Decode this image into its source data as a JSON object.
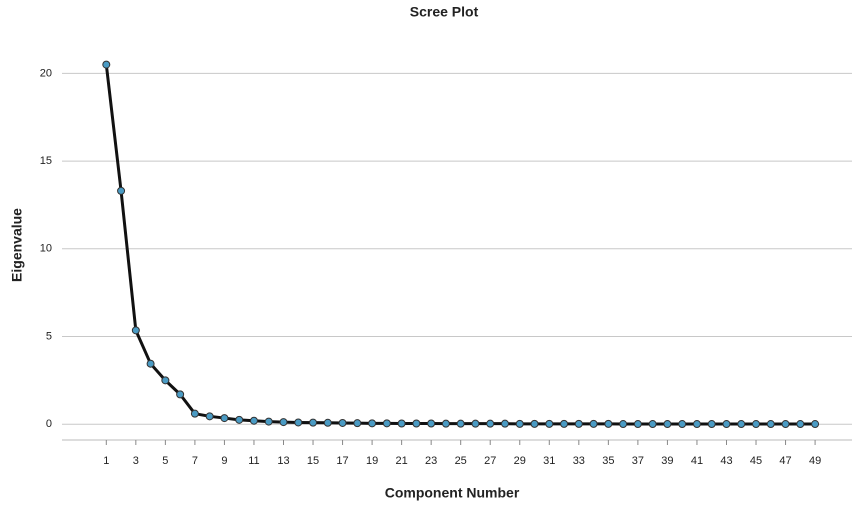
{
  "chart_data": {
    "type": "line",
    "title": "Scree Plot",
    "x_label": "Component Number",
    "y_label": "Eigenvalue",
    "x": [
      1,
      2,
      3,
      4,
      5,
      6,
      7,
      8,
      9,
      10,
      11,
      12,
      13,
      14,
      15,
      16,
      17,
      18,
      19,
      20,
      21,
      22,
      23,
      24,
      25,
      26,
      27,
      28,
      29,
      30,
      31,
      32,
      33,
      34,
      35,
      36,
      37,
      38,
      39,
      40,
      41,
      42,
      43,
      44,
      45,
      46,
      47,
      48,
      49
    ],
    "series": [
      {
        "color": "#4a9bc4",
        "values": [
          20.5,
          13.3,
          5.35,
          3.45,
          2.5,
          1.7,
          0.6,
          0.45,
          0.35,
          0.25,
          0.2,
          0.15,
          0.12,
          0.1,
          0.09,
          0.08,
          0.07,
          0.06,
          0.05,
          0.05,
          0.04,
          0.04,
          0.04,
          0.03,
          0.03,
          0.03,
          0.03,
          0.03,
          0.02,
          0.02,
          0.02,
          0.02,
          0.02,
          0.02,
          0.02,
          0.01,
          0.01,
          0.01,
          0.01,
          0.01,
          0.01,
          0.01,
          0.01,
          0.01,
          0.01,
          0.01,
          0.01,
          0.01,
          0.01
        ]
      }
    ],
    "xlim": [
      -2,
      51.5
    ],
    "xticks": [
      1,
      3,
      5,
      7,
      9,
      11,
      13,
      15,
      17,
      19,
      21,
      23,
      25,
      27,
      29,
      31,
      33,
      35,
      37,
      39,
      41,
      43,
      45,
      47,
      49
    ],
    "ylim": [
      -0.9,
      22.3
    ],
    "yticks": [
      0,
      5,
      10,
      15,
      20
    ],
    "grid": true
  }
}
